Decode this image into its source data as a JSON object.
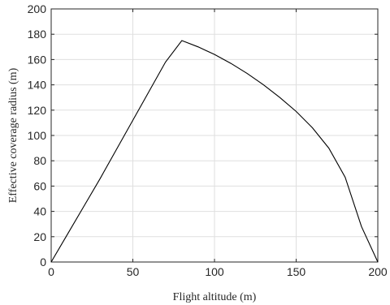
{
  "chart_data": {
    "type": "line",
    "title": "",
    "xlabel": "Flight altitude (m)",
    "ylabel": "Effective coverage radius (m)",
    "xlim": [
      0,
      200
    ],
    "ylim": [
      0,
      200
    ],
    "xticks": [
      0,
      50,
      100,
      150,
      200
    ],
    "yticks": [
      0,
      20,
      40,
      60,
      80,
      100,
      120,
      140,
      160,
      180,
      200
    ],
    "grid": true,
    "legend": "none",
    "colors": {
      "line": "#000000",
      "grid": "#dfdfdf",
      "axis": "#262626"
    },
    "series": [
      {
        "x": [
          0,
          10,
          20,
          30,
          40,
          50,
          60,
          70,
          80,
          90,
          100,
          110,
          120,
          130,
          140,
          150,
          160,
          170,
          180,
          190,
          200
        ],
        "y": [
          0,
          22,
          44,
          66,
          89,
          112,
          135,
          158,
          175,
          170,
          164,
          157,
          149,
          140,
          130,
          119,
          106,
          90,
          67,
          28,
          0
        ]
      }
    ]
  }
}
